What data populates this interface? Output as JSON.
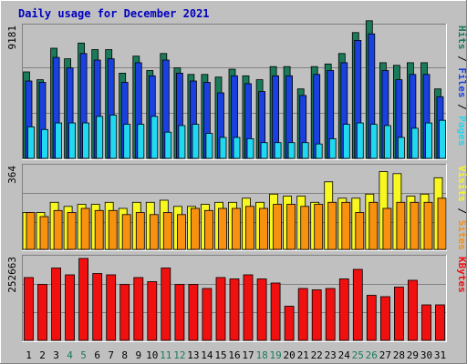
{
  "chart_data": {
    "type": "bar",
    "title": "Daily usage for December 2021",
    "categories": [
      "1",
      "2",
      "3",
      "4",
      "5",
      "6",
      "7",
      "8",
      "9",
      "10",
      "11",
      "12",
      "13",
      "14",
      "15",
      "16",
      "17",
      "18",
      "19",
      "20",
      "21",
      "22",
      "23",
      "24",
      "25",
      "26",
      "27",
      "28",
      "29",
      "30",
      "31"
    ],
    "weekend_days": [
      "4",
      "5",
      "11",
      "12",
      "18",
      "19",
      "25",
      "26"
    ],
    "panels": [
      {
        "name": "hits-files-pages",
        "ylim": [
          0,
          10000
        ],
        "y_tick_label": "9181",
        "side_labels": [
          "Pages",
          "Files",
          "Hits"
        ],
        "series": [
          {
            "name": "Hits",
            "color": "#1a7a5a",
            "values": [
              6600,
              6000,
              8400,
              7600,
              8800,
              8300,
              8300,
              6500,
              7800,
              6700,
              8000,
              6900,
              6400,
              6400,
              6200,
              6800,
              6300,
              6000,
              7000,
              7000,
              5300,
              7000,
              7200,
              8000,
              9600,
              10500,
              7300,
              7100,
              7300,
              7300,
              5300
            ]
          },
          {
            "name": "Files",
            "color": "#1a40e0",
            "values": [
              5900,
              5800,
              7700,
              6900,
              8000,
              7500,
              7600,
              5800,
              7300,
              6300,
              7500,
              6500,
              5900,
              5800,
              5000,
              6300,
              5700,
              5100,
              6300,
              6300,
              4800,
              6400,
              6700,
              7300,
              9000,
              9500,
              6700,
              6000,
              6400,
              6400,
              4700
            ]
          },
          {
            "name": "Pages",
            "color": "#20d8f0",
            "values": [
              2400,
              2200,
              2700,
              2700,
              2700,
              3200,
              3300,
              2600,
              2600,
              3200,
              2000,
              2500,
              2600,
              1900,
              1600,
              1600,
              1500,
              1200,
              1200,
              1200,
              1200,
              1100,
              1500,
              2600,
              2700,
              2600,
              2500,
              1600,
              2300,
              2700,
              2900
            ]
          }
        ]
      },
      {
        "name": "visits-sites",
        "ylim": [
          0,
          400
        ],
        "y_tick_label": "364",
        "side_labels": [
          "Sites",
          "Visits"
        ],
        "series": [
          {
            "name": "Visits",
            "color": "#f8f820",
            "values": [
              180,
              180,
              230,
              210,
              220,
              220,
              230,
              200,
              230,
              230,
              240,
              210,
              210,
              220,
              230,
              230,
              250,
              230,
              270,
              260,
              260,
              230,
              330,
              250,
              250,
              270,
              380,
              370,
              260,
              270,
              350
            ]
          },
          {
            "name": "Sites",
            "color": "#f89010",
            "values": [
              180,
              160,
              190,
              180,
              200,
              190,
              190,
              170,
              180,
              170,
              180,
              170,
              200,
              190,
              200,
              200,
              210,
              200,
              220,
              220,
              210,
              220,
              230,
              230,
              180,
              230,
              200,
              230,
              230,
              230,
              250
            ]
          }
        ]
      },
      {
        "name": "kbytes",
        "ylim": [
          0,
          300000
        ],
        "y_tick_label": "252663",
        "side_labels": [
          "KBytes"
        ],
        "series": [
          {
            "name": "KBytes",
            "color": "#f01010",
            "values": [
              230000,
              205000,
              265000,
              240000,
              300000,
              245000,
              240000,
              205000,
              230000,
              215000,
              265000,
              205000,
              205000,
              190000,
              230000,
              225000,
              240000,
              225000,
              210000,
              125000,
              190000,
              185000,
              190000,
              225000,
              260000,
              165000,
              160000,
              195000,
              220000,
              130000,
              130000
            ]
          }
        ]
      }
    ]
  },
  "colors": {
    "background": "#c0c0c0",
    "plot_bg": "#c0c0c0",
    "title": "#0000c0",
    "weekend_label": "#1a7a5a",
    "weekday_label": "#000000"
  }
}
